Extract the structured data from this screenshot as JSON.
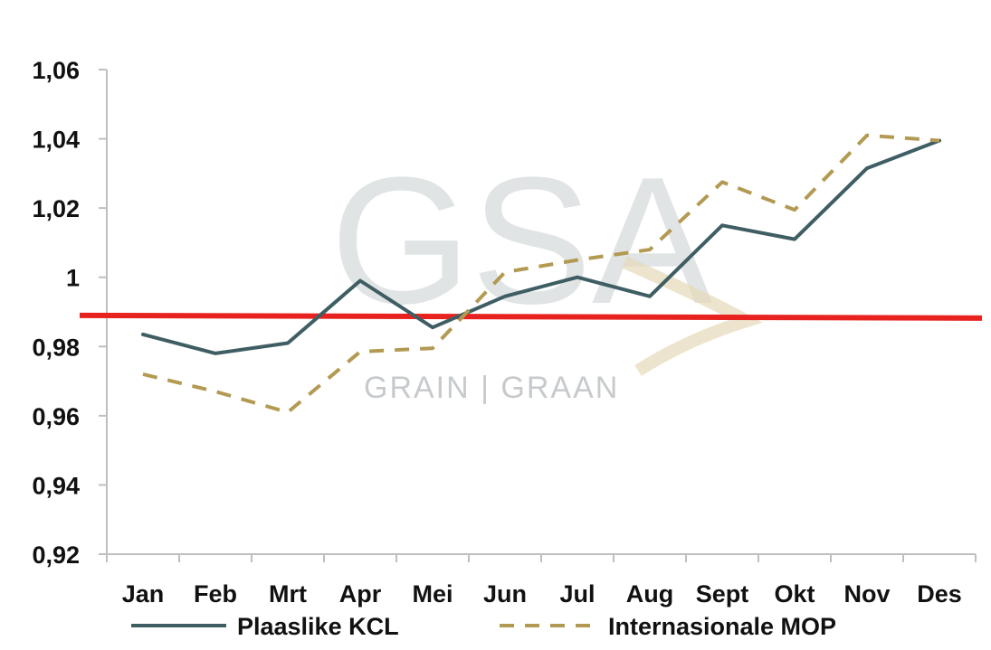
{
  "chart_data": {
    "type": "line",
    "categories": [
      "Jan",
      "Feb",
      "Mrt",
      "Apr",
      "Mei",
      "Jun",
      "Jul",
      "Aug",
      "Sept",
      "Okt",
      "Nov",
      "Des"
    ],
    "series": [
      {
        "name": "Plaaslike KCL",
        "color": "#3f5e63",
        "style": "solid",
        "values": [
          0.9835,
          0.978,
          0.981,
          0.999,
          0.9855,
          0.9945,
          1.0,
          0.9945,
          1.015,
          1.011,
          1.0315,
          1.0395
        ]
      },
      {
        "name": "Internasionale MOP",
        "color": "#b39a52",
        "style": "dashed",
        "values": [
          0.972,
          0.967,
          0.961,
          0.9785,
          0.9795,
          1.0015,
          1.005,
          1.008,
          1.0275,
          1.0195,
          1.041,
          1.0395
        ]
      }
    ],
    "reference_line": {
      "value": 0.989,
      "color": "#e8231f"
    },
    "yticks": [
      "0,92",
      "0,94",
      "0,96",
      "0,98",
      "1",
      "1,02",
      "1,04",
      "1,06"
    ],
    "ylim": [
      0.92,
      1.06
    ],
    "legend_position": "bottom",
    "grid": false,
    "title": "",
    "xlabel": "",
    "ylabel": ""
  },
  "watermark": {
    "letters": "GSA",
    "text": "GRAIN | GRAAN"
  }
}
